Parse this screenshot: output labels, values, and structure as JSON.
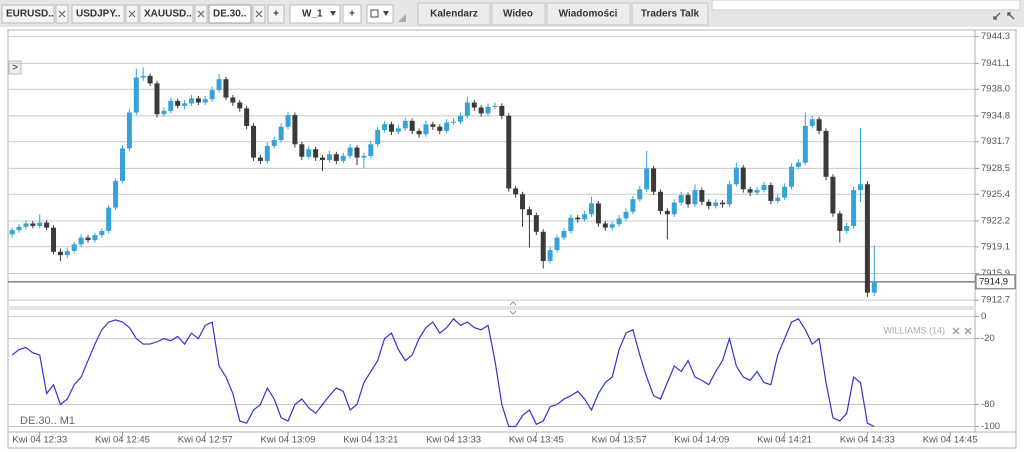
{
  "tabs": [
    "EURUSD..",
    "USDJPY..",
    "XAUUSD..",
    "DE.30.."
  ],
  "toolbar": {
    "add_tab": "+",
    "template": "W_1",
    "add": "+"
  },
  "nav": [
    "Kalendarz",
    "Wideo",
    "Wiadomości",
    "Traders Talk"
  ],
  "expand_button": ">",
  "chart_data": [
    {
      "type": "candlestick",
      "symbol_label": "DE.30.. M1",
      "up_color": "#35a3d8",
      "down_color": "#3a3a3a",
      "grid": true,
      "xlim": [
        748.4,
        888.6
      ],
      "ylim": [
        7912.0,
        7945.1
      ],
      "yticks": [
        7944.3,
        7941.1,
        {
          "value": 7938,
          "label": "7938.0"
        },
        7934.8,
        7931.7,
        7928.5,
        7925.4,
        7922.2,
        7919.1,
        7915.9,
        7912.7
      ],
      "last_price": 7914.9,
      "x": [
        749,
        750,
        751,
        752,
        753,
        754,
        755,
        756,
        757,
        758,
        759,
        760,
        761,
        762,
        763,
        764,
        765,
        766,
        767,
        768,
        769,
        770,
        771,
        772,
        773,
        774,
        775,
        776,
        777,
        778,
        779,
        780,
        781,
        782,
        783,
        784,
        785,
        786,
        787,
        788,
        789,
        790,
        791,
        792,
        793,
        794,
        795,
        796,
        797,
        798,
        799,
        800,
        801,
        802,
        803,
        804,
        805,
        806,
        807,
        808,
        809,
        810,
        811,
        812,
        813,
        814,
        815,
        816,
        817,
        818,
        819,
        820,
        821,
        822,
        823,
        824,
        825,
        826,
        827,
        828,
        829,
        830,
        831,
        832,
        833,
        834,
        835,
        836,
        837,
        838,
        839,
        840,
        841,
        842,
        843,
        844,
        845,
        846,
        847,
        848,
        849,
        850,
        851,
        852,
        853,
        854,
        855,
        856,
        857,
        858,
        859,
        860,
        861,
        862,
        863,
        864,
        865,
        866,
        867,
        868,
        869,
        870,
        871,
        872,
        873,
        874
      ],
      "ohlc": [
        [
          7920.6,
          7921.4,
          7920.2,
          7921.1
        ],
        [
          7921.1,
          7921.8,
          7920.8,
          7921.5
        ],
        [
          7921.5,
          7922.3,
          7921.2,
          7921.9
        ],
        [
          7921.9,
          7922.2,
          7921.3,
          7921.6
        ],
        [
          7921.6,
          7923.0,
          7921.3,
          7922.0
        ],
        [
          7922.0,
          7922.3,
          7921.1,
          7921.4
        ],
        [
          7921.4,
          7921.7,
          7918.2,
          7918.5
        ],
        [
          7918.5,
          7918.9,
          7917.4,
          7918.1
        ],
        [
          7918.1,
          7919.0,
          7917.8,
          7918.6
        ],
        [
          7918.6,
          7919.7,
          7918.3,
          7919.4
        ],
        [
          7919.4,
          7920.6,
          7919.1,
          7920.2
        ],
        [
          7920.2,
          7920.5,
          7919.6,
          7919.9
        ],
        [
          7919.9,
          7920.8,
          7919.6,
          7920.5
        ],
        [
          7920.5,
          7921.3,
          7920.2,
          7921.0
        ],
        [
          7921.0,
          7924.1,
          7920.7,
          7923.8
        ],
        [
          7923.8,
          7927.3,
          7923.5,
          7927.0
        ],
        [
          7927.0,
          7931.3,
          7926.7,
          7930.9
        ],
        [
          7930.9,
          7935.6,
          7930.6,
          7935.2
        ],
        [
          7935.2,
          7940.5,
          7934.9,
          7939.4
        ],
        [
          7939.4,
          7940.6,
          7939.0,
          7939.6
        ],
        [
          7939.6,
          7939.9,
          7938.4,
          7938.7
        ],
        [
          7938.7,
          7939.0,
          7934.6,
          7935.0
        ],
        [
          7935.0,
          7935.8,
          7934.7,
          7935.4
        ],
        [
          7935.4,
          7937.0,
          7935.1,
          7936.6
        ],
        [
          7936.6,
          7936.9,
          7935.7,
          7936.0
        ],
        [
          7936.0,
          7936.7,
          7935.6,
          7936.3
        ],
        [
          7936.3,
          7937.3,
          7936.0,
          7936.9
        ],
        [
          7936.9,
          7937.2,
          7936.1,
          7936.4
        ],
        [
          7936.4,
          7937.2,
          7936.1,
          7936.8
        ],
        [
          7936.8,
          7938.3,
          7936.5,
          7937.9
        ],
        [
          7937.9,
          7939.8,
          7937.6,
          7939.2
        ],
        [
          7939.2,
          7939.5,
          7936.7,
          7937.0
        ],
        [
          7937.0,
          7937.3,
          7936.0,
          7936.4
        ],
        [
          7936.4,
          7936.7,
          7935.3,
          7935.7
        ],
        [
          7935.7,
          7936.0,
          7933.2,
          7933.6
        ],
        [
          7933.6,
          7933.9,
          7929.4,
          7929.8
        ],
        [
          7929.8,
          7930.1,
          7929.0,
          7929.4
        ],
        [
          7929.4,
          7931.6,
          7929.1,
          7931.2
        ],
        [
          7931.2,
          7932.3,
          7930.9,
          7931.9
        ],
        [
          7931.9,
          7933.9,
          7931.6,
          7933.5
        ],
        [
          7933.5,
          7935.3,
          7933.2,
          7934.9
        ],
        [
          7934.9,
          7935.2,
          7931.0,
          7931.4
        ],
        [
          7931.4,
          7931.7,
          7929.5,
          7929.9
        ],
        [
          7929.9,
          7931.2,
          7929.6,
          7930.8
        ],
        [
          7930.8,
          7931.1,
          7929.4,
          7929.8
        ],
        [
          7929.8,
          7930.1,
          7928.2,
          7929.5
        ],
        [
          7929.5,
          7930.6,
          7929.2,
          7930.2
        ],
        [
          7930.2,
          7930.5,
          7929.0,
          7929.4
        ],
        [
          7929.4,
          7930.4,
          7929.1,
          7930.0
        ],
        [
          7930.0,
          7931.4,
          7929.7,
          7931.0
        ],
        [
          7931.0,
          7931.3,
          7928.9,
          7929.8
        ],
        [
          7929.8,
          7930.4,
          7928.5,
          7930.0
        ],
        [
          7930.0,
          7931.8,
          7929.7,
          7931.4
        ],
        [
          7931.4,
          7933.5,
          7931.1,
          7933.1
        ],
        [
          7933.1,
          7934.2,
          7932.8,
          7933.8
        ],
        [
          7933.8,
          7934.1,
          7932.5,
          7932.9
        ],
        [
          7932.9,
          7933.7,
          7932.6,
          7933.3
        ],
        [
          7933.3,
          7934.6,
          7933.0,
          7934.2
        ],
        [
          7934.2,
          7934.5,
          7932.6,
          7933.0
        ],
        [
          7933.0,
          7933.3,
          7932.2,
          7932.6
        ],
        [
          7932.6,
          7934.2,
          7932.3,
          7933.8
        ],
        [
          7933.8,
          7934.1,
          7933.1,
          7933.5
        ],
        [
          7933.5,
          7933.8,
          7932.6,
          7933.0
        ],
        [
          7933.0,
          7934.4,
          7932.7,
          7934.0
        ],
        [
          7934.0,
          7934.5,
          7933.7,
          7934.1
        ],
        [
          7934.1,
          7935.2,
          7933.8,
          7934.8
        ],
        [
          7934.8,
          7937.1,
          7934.5,
          7936.4
        ],
        [
          7936.4,
          7936.7,
          7935.4,
          7935.8
        ],
        [
          7935.8,
          7936.1,
          7934.7,
          7935.1
        ],
        [
          7935.1,
          7936.3,
          7934.8,
          7935.9
        ],
        [
          7935.9,
          7936.4,
          7935.6,
          7936.0
        ],
        [
          7936.0,
          7936.3,
          7934.4,
          7934.8
        ],
        [
          7934.8,
          7935.1,
          7925.7,
          7926.1
        ],
        [
          7926.1,
          7926.4,
          7925.0,
          7925.4
        ],
        [
          7925.4,
          7925.7,
          7921.5,
          7923.6
        ],
        [
          7923.6,
          7923.9,
          7919.0,
          7922.9
        ],
        [
          7922.9,
          7923.2,
          7920.5,
          7920.9
        ],
        [
          7920.9,
          7921.2,
          7916.5,
          7917.4
        ],
        [
          7917.4,
          7919.1,
          7917.1,
          7918.7
        ],
        [
          7918.7,
          7920.6,
          7918.4,
          7920.2
        ],
        [
          7920.2,
          7921.4,
          7919.9,
          7921.0
        ],
        [
          7921.0,
          7923.0,
          7920.7,
          7922.6
        ],
        [
          7922.6,
          7922.9,
          7922.0,
          7922.4
        ],
        [
          7922.4,
          7923.4,
          7922.1,
          7923.0
        ],
        [
          7923.0,
          7925.1,
          7922.7,
          7924.3
        ],
        [
          7924.3,
          7924.6,
          7921.5,
          7921.9
        ],
        [
          7921.9,
          7922.2,
          7921.0,
          7921.4
        ],
        [
          7921.4,
          7922.2,
          7921.1,
          7921.8
        ],
        [
          7921.8,
          7922.9,
          7921.5,
          7922.5
        ],
        [
          7922.5,
          7923.7,
          7922.2,
          7923.3
        ],
        [
          7923.3,
          7925.2,
          7923.0,
          7924.8
        ],
        [
          7924.8,
          7926.4,
          7924.5,
          7926.0
        ],
        [
          7926.0,
          7930.6,
          7925.7,
          7928.5
        ],
        [
          7928.5,
          7928.8,
          7925.3,
          7925.7
        ],
        [
          7925.7,
          7926.0,
          7923.0,
          7923.4
        ],
        [
          7923.4,
          7923.7,
          7920.0,
          7923.0
        ],
        [
          7923.0,
          7924.8,
          7922.7,
          7924.4
        ],
        [
          7924.4,
          7925.7,
          7924.1,
          7925.3
        ],
        [
          7925.3,
          7925.6,
          7923.8,
          7924.2
        ],
        [
          7924.2,
          7926.6,
          7923.9,
          7925.9
        ],
        [
          7925.9,
          7926.2,
          7924.1,
          7924.5
        ],
        [
          7924.5,
          7924.8,
          7923.6,
          7924.0
        ],
        [
          7924.0,
          7924.8,
          7923.7,
          7924.4
        ],
        [
          7924.4,
          7924.7,
          7923.8,
          7924.2
        ],
        [
          7924.2,
          7927.0,
          7923.9,
          7926.6
        ],
        [
          7926.6,
          7929.2,
          7926.3,
          7928.6
        ],
        [
          7928.6,
          7928.9,
          7925.6,
          7926.0
        ],
        [
          7926.0,
          7926.3,
          7925.2,
          7925.6
        ],
        [
          7925.6,
          7926.3,
          7925.3,
          7925.9
        ],
        [
          7925.9,
          7926.9,
          7925.6,
          7926.5
        ],
        [
          7926.5,
          7926.8,
          7924.2,
          7924.6
        ],
        [
          7924.6,
          7925.4,
          7924.3,
          7925.0
        ],
        [
          7925.0,
          7926.7,
          7924.7,
          7926.3
        ],
        [
          7926.3,
          7929.1,
          7926.0,
          7928.7
        ],
        [
          7928.7,
          7929.6,
          7928.4,
          7929.2
        ],
        [
          7929.2,
          7935.2,
          7928.9,
          7933.6
        ],
        [
          7933.6,
          7934.8,
          7933.3,
          7934.4
        ],
        [
          7934.4,
          7934.7,
          7932.6,
          7933.0
        ],
        [
          7933.0,
          7933.3,
          7927.1,
          7927.5
        ],
        [
          7927.5,
          7927.8,
          7922.7,
          7923.1
        ],
        [
          7923.1,
          7923.4,
          7919.6,
          7921.0
        ],
        [
          7921.0,
          7922.0,
          7920.7,
          7921.6
        ],
        [
          7921.6,
          7926.3,
          7921.3,
          7925.9
        ],
        [
          7925.9,
          7933.3,
          7924.5,
          7926.6
        ],
        [
          7926.6,
          7927.0,
          7913.1,
          7913.6
        ],
        [
          7913.6,
          7919.3,
          7913.2,
          7914.9
        ]
      ]
    },
    {
      "type": "line",
      "grid": true,
      "xlim": [
        748.4,
        888.6
      ],
      "ylim": [
        -105,
        6
      ],
      "yticks": [
        0,
        -20,
        -80,
        -100
      ],
      "xticks": [
        {
          "value": 753,
          "label": "Kwi 04 12:33"
        },
        {
          "value": 765,
          "label": "Kwi 04 12:45"
        },
        {
          "value": 777,
          "label": "Kwi 04 12:57"
        },
        {
          "value": 789,
          "label": "Kwi 04 13:09"
        },
        {
          "value": 801,
          "label": "Kwi 04 13:21"
        },
        {
          "value": 813,
          "label": "Kwi 04 13:33"
        },
        {
          "value": 825,
          "label": "Kwi 04 13:45"
        },
        {
          "value": 837,
          "label": "Kwi 04 13:57"
        },
        {
          "value": 849,
          "label": "Kwi 04 14:09"
        },
        {
          "value": 861,
          "label": "Kwi 04 14:21"
        },
        {
          "value": 873,
          "label": "Kwi 04 14:33"
        },
        {
          "value": 885,
          "label": "Kwi 04 14:45"
        }
      ],
      "series": [
        {
          "name": "WILLIAMS (14)",
          "color": "#3434cc",
          "values": [
            -35,
            -30,
            -28,
            -33,
            -35,
            -70,
            -62,
            -80,
            -75,
            -62,
            -55,
            -40,
            -25,
            -12,
            -5,
            -3,
            -5,
            -10,
            -20,
            -25,
            -25,
            -23,
            -20,
            -22,
            -18,
            -25,
            -15,
            -20,
            -8,
            -5,
            -45,
            -55,
            -70,
            -95,
            -97,
            -85,
            -80,
            -65,
            -75,
            -92,
            -95,
            -80,
            -75,
            -83,
            -88,
            -80,
            -72,
            -65,
            -68,
            -85,
            -80,
            -60,
            -50,
            -40,
            -20,
            -15,
            -30,
            -40,
            -35,
            -20,
            -10,
            -5,
            -15,
            -10,
            -2,
            -8,
            -5,
            -10,
            -12,
            -8,
            -40,
            -80,
            -100,
            -100,
            -90,
            -85,
            -98,
            -95,
            -82,
            -80,
            -75,
            -72,
            -68,
            -75,
            -85,
            -70,
            -60,
            -55,
            -30,
            -15,
            -12,
            -35,
            -55,
            -72,
            -75,
            -60,
            -45,
            -50,
            -40,
            -55,
            -58,
            -62,
            -50,
            -40,
            -20,
            -45,
            -55,
            -58,
            -50,
            -60,
            -62,
            -35,
            -20,
            -5,
            -2,
            -12,
            -25,
            -20,
            -60,
            -92,
            -95,
            -88,
            -55,
            -60,
            -97,
            -100
          ]
        }
      ]
    }
  ]
}
